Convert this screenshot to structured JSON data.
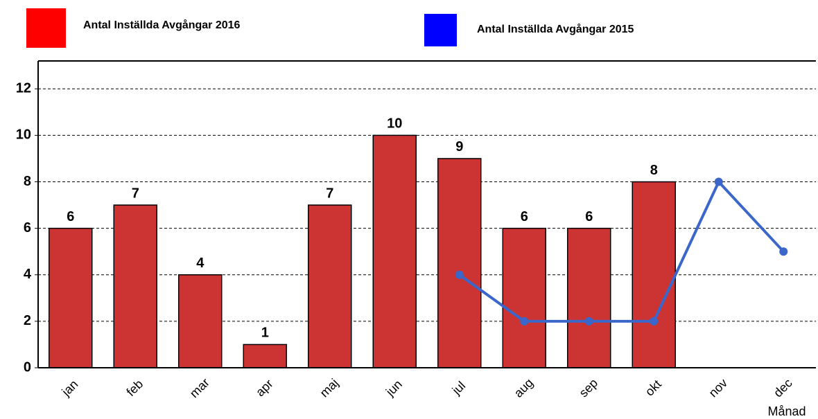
{
  "chart_data": {
    "type": "bar",
    "x_label": "Månad",
    "categories": [
      "jan",
      "feb",
      "mar",
      "apr",
      "maj",
      "jun",
      "jul",
      "aug",
      "sep",
      "okt",
      "nov",
      "dec"
    ],
    "series": [
      {
        "name": "Antal Inställda Avgångar 2016",
        "type": "bar",
        "color": "#cc3333",
        "legend_color": "#ff0000",
        "values": [
          6,
          7,
          4,
          1,
          7,
          10,
          9,
          6,
          6,
          8,
          null,
          null
        ]
      },
      {
        "name": "Antal Inställda Avgångar 2015",
        "type": "line",
        "color": "#3a67c9",
        "legend_color": "#0000ff",
        "values": [
          null,
          null,
          null,
          null,
          null,
          null,
          4,
          2,
          2,
          2,
          8,
          5
        ]
      }
    ],
    "ylim": [
      0,
      13.2
    ],
    "yticks": [
      0,
      2,
      4,
      6,
      8,
      10,
      12
    ],
    "grid": true
  }
}
